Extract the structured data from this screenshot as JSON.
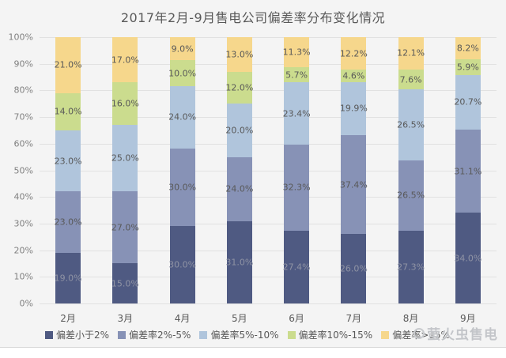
{
  "page": {
    "watermark": "萤火虫售电"
  },
  "chart_data": {
    "type": "bar",
    "stacked": true,
    "percent_stacked": true,
    "title": "2017年2月-9月售电公司偏差率分布变化情况",
    "categories": [
      "2月",
      "3月",
      "4月",
      "5月",
      "6月",
      "7月",
      "8月",
      "9月"
    ],
    "series": [
      {
        "name": "偏差小于2%",
        "color": "#4f5a82",
        "label_color": "#8f93a4",
        "values": [
          19.0,
          15.0,
          30.0,
          31.0,
          27.4,
          26.0,
          27.3,
          34.0
        ]
      },
      {
        "name": "偏差率2%-5%",
        "color": "#8792b6",
        "label_color": "#595959",
        "values": [
          23.0,
          27.0,
          30.0,
          24.0,
          32.3,
          37.4,
          26.5,
          31.1
        ]
      },
      {
        "name": "偏差率5%-10%",
        "color": "#b0c5dc",
        "label_color": "#595959",
        "values": [
          23.0,
          25.0,
          24.0,
          20.0,
          23.4,
          19.9,
          26.5,
          20.7
        ]
      },
      {
        "name": "偏差率10%-15%",
        "color": "#cbdc8e",
        "label_color": "#595959",
        "values": [
          14.0,
          16.0,
          10.0,
          12.0,
          5.7,
          4.6,
          7.6,
          5.9
        ]
      },
      {
        "name": "偏差率>15%",
        "color": "#f6d78c",
        "label_color": "#595959",
        "values": [
          21.0,
          17.0,
          9.0,
          13.0,
          11.3,
          12.2,
          12.1,
          8.2
        ]
      }
    ],
    "y_ticks": [
      "100%",
      "90%",
      "80%",
      "70%",
      "60%",
      "50%",
      "40%",
      "30%",
      "20%",
      "10%",
      "0%"
    ],
    "ylim": [
      0,
      100
    ],
    "grid": true,
    "legend_position": "bottom",
    "xlabel": "",
    "ylabel": ""
  }
}
